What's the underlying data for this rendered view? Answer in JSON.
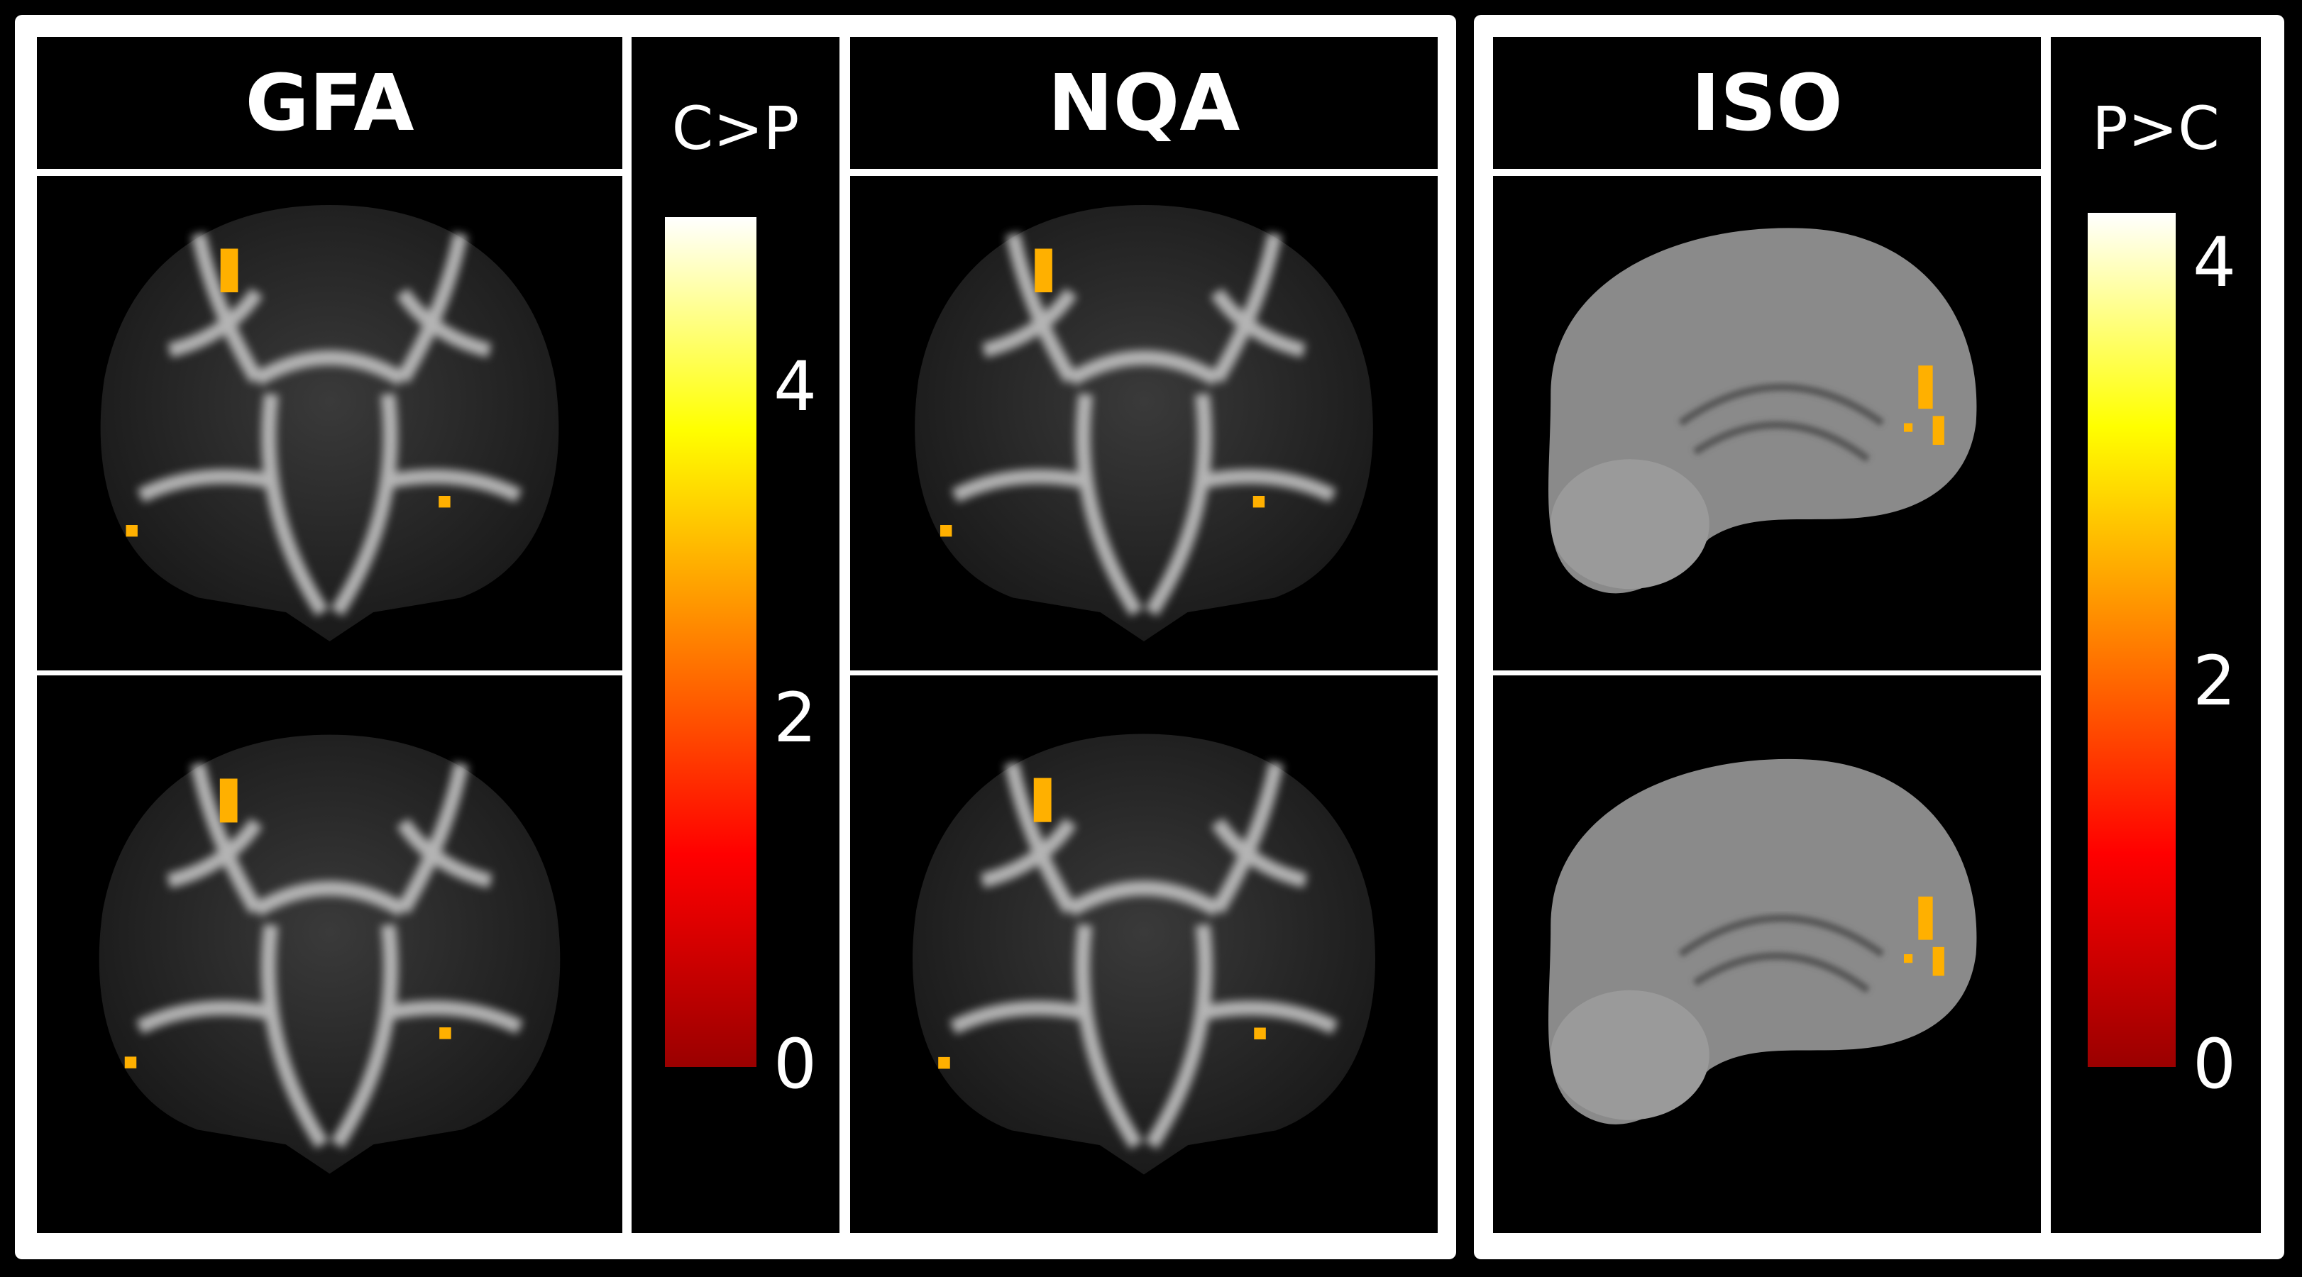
{
  "panels": [
    {
      "title": "GFA"
    },
    {
      "title": "NQA"
    },
    {
      "title": "ISO"
    }
  ],
  "colorbars": [
    {
      "label": "C>P",
      "ticks": [
        "4",
        "2",
        "0"
      ],
      "range": [
        0,
        5
      ],
      "colors": [
        "#9a0000",
        "#ff0000",
        "#ff8000",
        "#ffff00",
        "#ffffff"
      ]
    },
    {
      "label": "P>C",
      "ticks": [
        "4",
        "2",
        "0"
      ],
      "range": [
        0,
        4
      ],
      "colors": [
        "#9a0000",
        "#ff0000",
        "#ff8000",
        "#ffff00",
        "#ffffff"
      ]
    }
  ],
  "overlay_color": "#ffb000"
}
